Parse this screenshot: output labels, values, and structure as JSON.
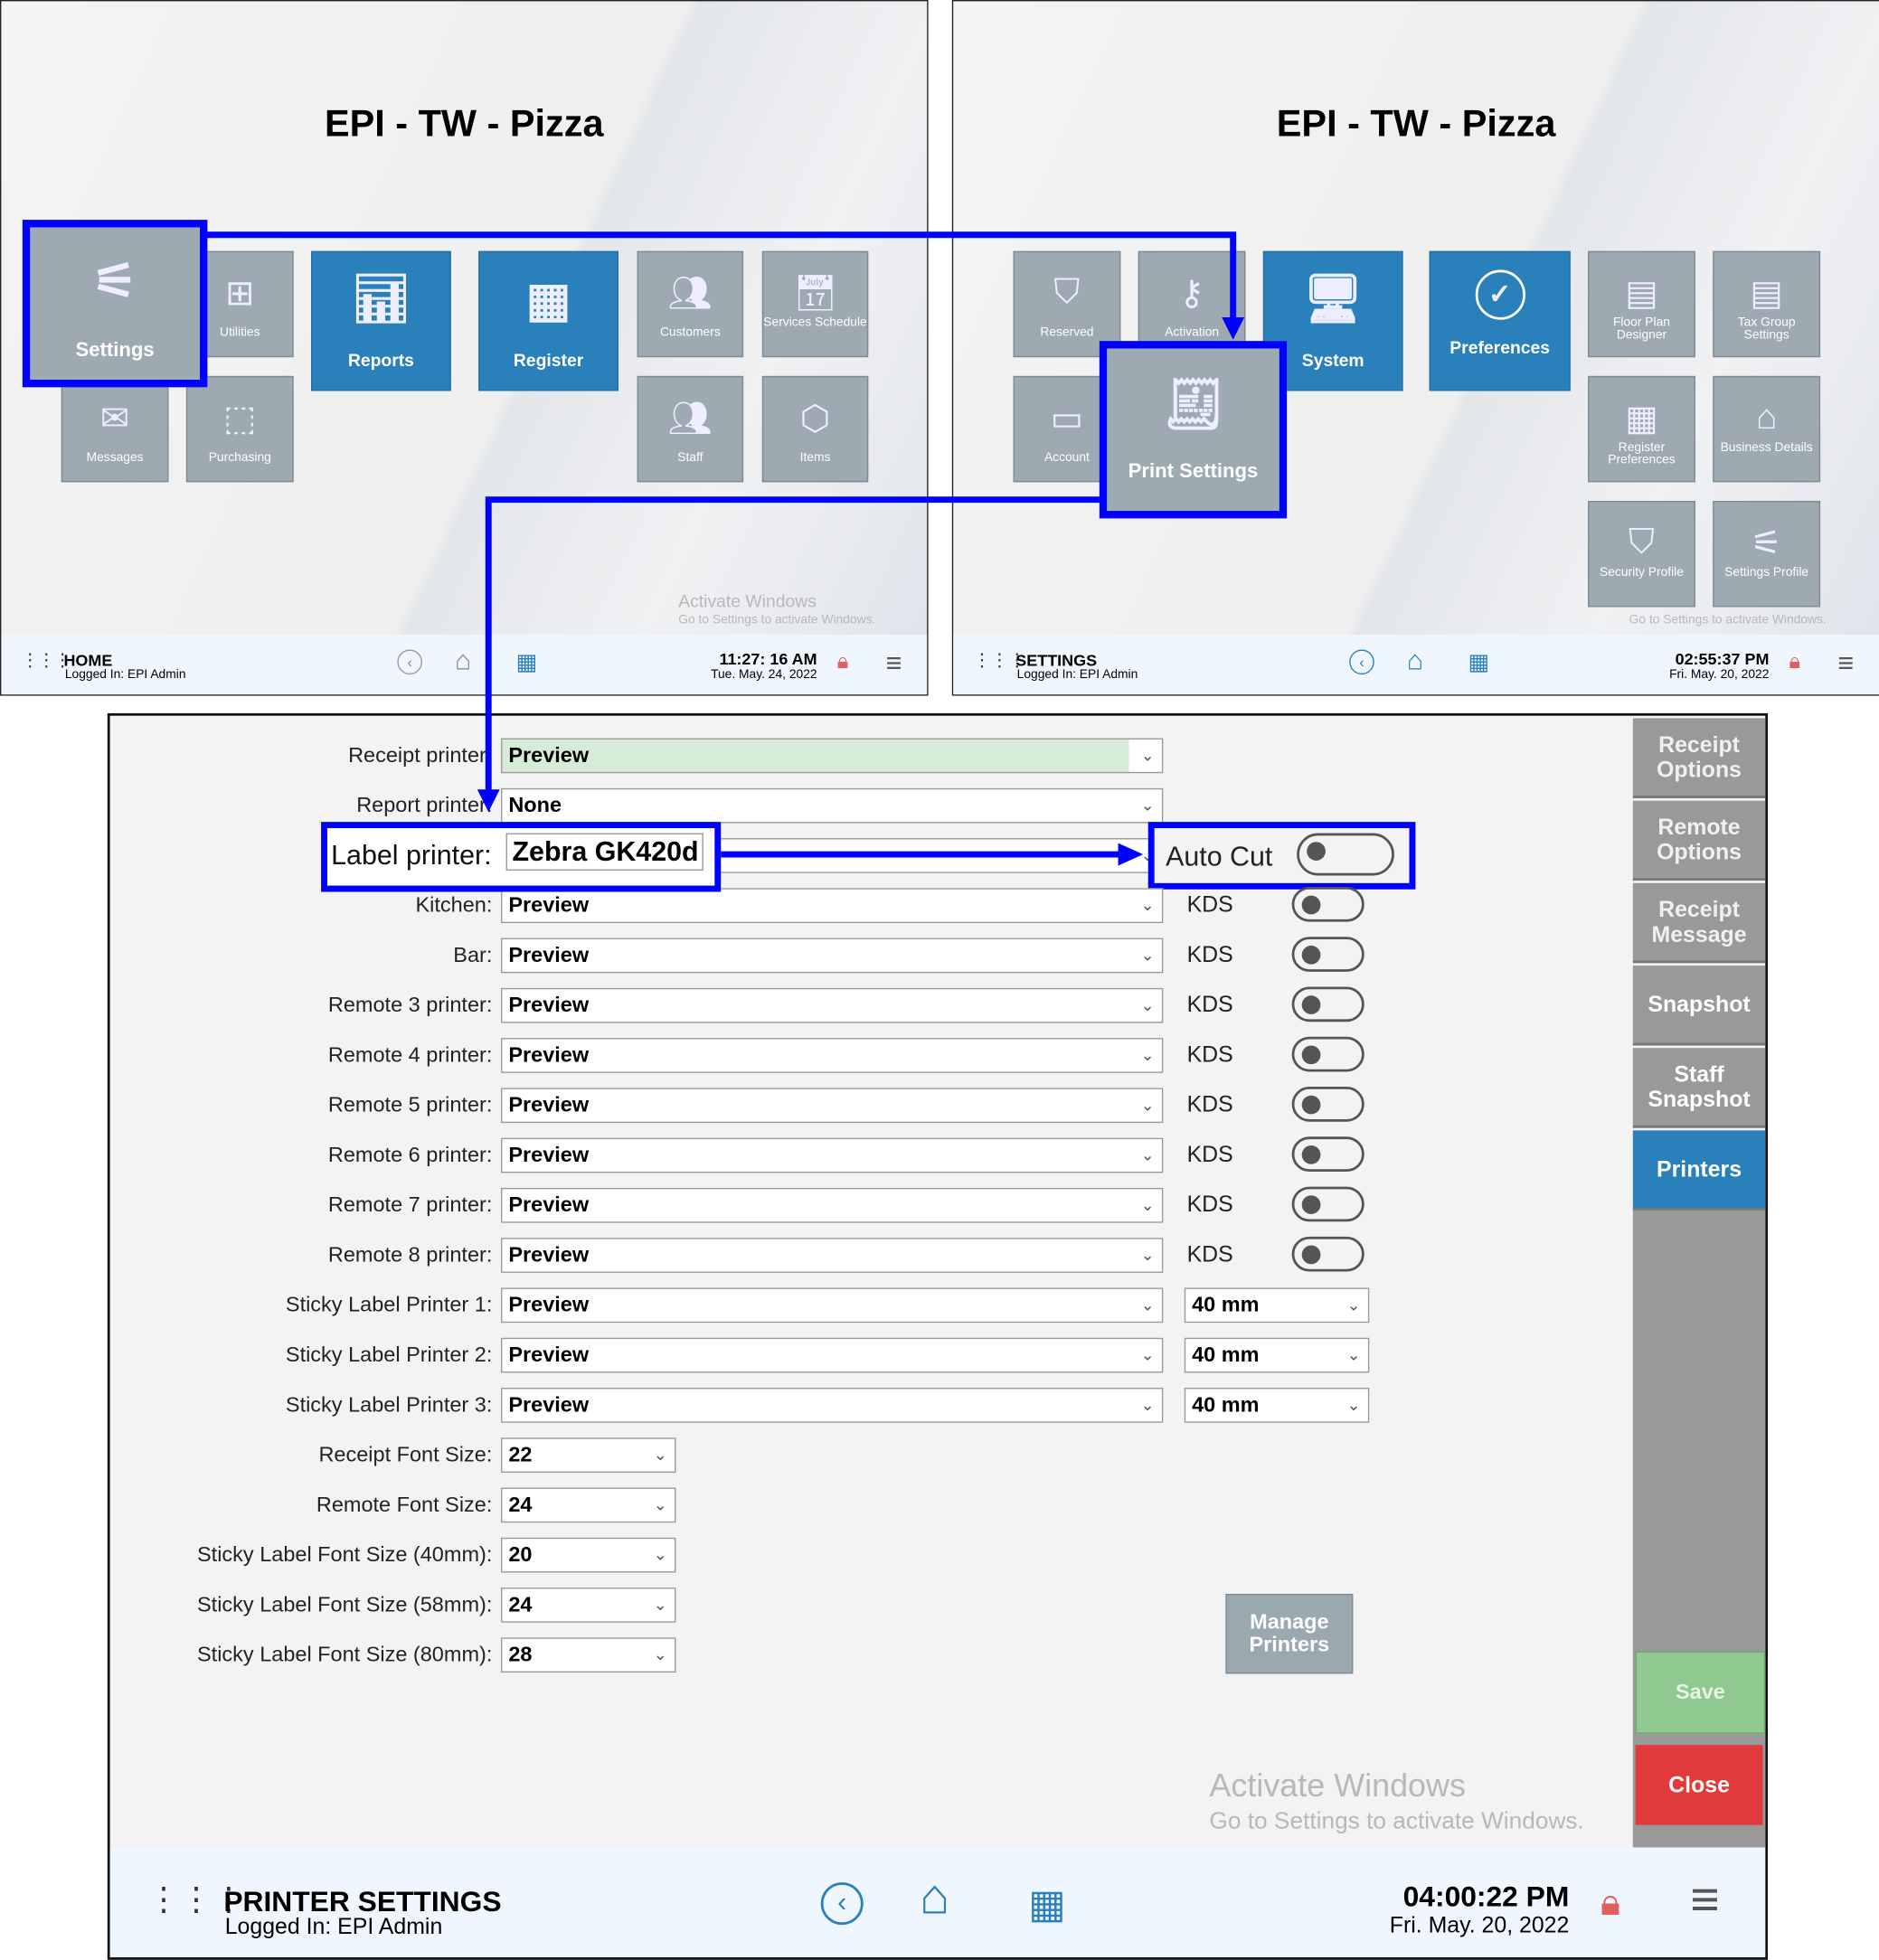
{
  "home": {
    "title": "EPI - TW - Pizza",
    "tiles": [
      {
        "label": "Settings",
        "icon": "sliders-icon",
        "style": "big"
      },
      {
        "label": "Utilities",
        "icon": "grid-plus-icon",
        "style": "gray"
      },
      {
        "label": "Reports",
        "icon": "report-chart-icon",
        "style": "blue"
      },
      {
        "label": "Register",
        "icon": "cash-register-icon",
        "style": "blue"
      },
      {
        "label": "Customers",
        "icon": "customers-icon",
        "style": "gray"
      },
      {
        "label": "Services Schedule",
        "icon": "calendar-clock-icon",
        "style": "gray"
      },
      {
        "label": "Messages",
        "icon": "envelope-icon",
        "style": "gray"
      },
      {
        "label": "Purchasing",
        "icon": "box-check-icon",
        "style": "gray"
      },
      {
        "label": "Staff",
        "icon": "staff-icon",
        "style": "gray"
      },
      {
        "label": "Items",
        "icon": "package-icon",
        "style": "gray"
      }
    ],
    "watermark_title": "Activate Windows",
    "watermark_sub": "Go to Settings to activate Windows.",
    "footer": {
      "screen": "HOME",
      "logged_in": "Logged In:  EPI Admin",
      "time": "11:27: 16 AM",
      "date": "Tue. May. 24, 2022"
    }
  },
  "settings": {
    "title": "EPI - TW - Pizza",
    "tiles": [
      {
        "label": "Reserved",
        "icon": "shield-check-icon",
        "style": "gray"
      },
      {
        "label": "Activation",
        "icon": "key-icon",
        "style": "gray"
      },
      {
        "label": "System",
        "icon": "monitor-icon",
        "style": "blue"
      },
      {
        "label": "Preferences",
        "icon": "check-circle-icon",
        "style": "blue"
      },
      {
        "label": "Floor Plan Designer",
        "icon": "floor-plan-icon",
        "style": "gray"
      },
      {
        "label": "Tax Group Settings",
        "icon": "tax-document-icon",
        "style": "gray"
      },
      {
        "label": "Account",
        "icon": "credit-card-icon",
        "style": "gray"
      },
      {
        "label": "Register Preferences",
        "icon": "register-check-icon",
        "style": "gray"
      },
      {
        "label": "Business Details",
        "icon": "storefront-icon",
        "style": "gray"
      },
      {
        "label": "Security Profile",
        "icon": "shield-user-icon",
        "style": "gray"
      },
      {
        "label": "Settings Profile",
        "icon": "sliders-user-icon",
        "style": "gray"
      },
      {
        "label": "Print Settings",
        "icon": "receipt-icon",
        "style": "big"
      }
    ],
    "watermark_sub": "Go to Settings to activate Windows.",
    "footer": {
      "screen": "SETTINGS",
      "logged_in": "Logged In:  EPI Admin",
      "time": "02:55:37 PM",
      "date": "Fri. May. 20, 2022"
    }
  },
  "printer_settings": {
    "rows": [
      {
        "label": "Receipt printer:",
        "value": "Preview",
        "highlight": "#d6ecd6"
      },
      {
        "label": "Report printer:",
        "value": "None"
      },
      {
        "label": "Label printer:",
        "value": "Zebra GK420d",
        "extra_label": "Auto Cut",
        "toggle": false
      },
      {
        "label": "Kitchen:",
        "value": "Preview",
        "extra_label": "KDS",
        "toggle": false
      },
      {
        "label": "Bar:",
        "value": "Preview",
        "extra_label": "KDS",
        "toggle": false
      },
      {
        "label": "Remote 3 printer:",
        "value": "Preview",
        "extra_label": "KDS",
        "toggle": false
      },
      {
        "label": "Remote 4 printer:",
        "value": "Preview",
        "extra_label": "KDS",
        "toggle": false
      },
      {
        "label": "Remote 5 printer:",
        "value": "Preview",
        "extra_label": "KDS",
        "toggle": false
      },
      {
        "label": "Remote 6 printer:",
        "value": "Preview",
        "extra_label": "KDS",
        "toggle": false
      },
      {
        "label": "Remote 7 printer:",
        "value": "Preview",
        "extra_label": "KDS",
        "toggle": false
      },
      {
        "label": "Remote 8 printer:",
        "value": "Preview",
        "extra_label": "KDS",
        "toggle": false
      },
      {
        "label": "Sticky Label Printer 1:",
        "value": "Preview",
        "size": "40 mm"
      },
      {
        "label": "Sticky Label Printer 2:",
        "value": "Preview",
        "size": "40 mm"
      },
      {
        "label": "Sticky Label Printer 3:",
        "value": "Preview",
        "size": "40 mm"
      },
      {
        "label": "Receipt Font Size:",
        "value": "22",
        "short": true
      },
      {
        "label": "Remote Font Size:",
        "value": "24",
        "short": true
      },
      {
        "label": "Sticky Label Font Size (40mm):",
        "value": "20",
        "short": true
      },
      {
        "label": "Sticky Label Font Size (58mm):",
        "value": "24",
        "short": true
      },
      {
        "label": "Sticky Label Font Size (80mm):",
        "value": "28",
        "short": true
      }
    ],
    "sidebar": [
      {
        "label": "Receipt Options",
        "active": false
      },
      {
        "label": "Remote Options",
        "active": false
      },
      {
        "label": "Receipt Message",
        "active": false
      },
      {
        "label": "Snapshot",
        "active": false
      },
      {
        "label": "Staff Snapshot",
        "active": false
      },
      {
        "label": "Printers",
        "active": true
      }
    ],
    "manage_printers": "Manage Printers",
    "save": "Save",
    "close": "Close",
    "watermark_title": "Activate Windows",
    "watermark_sub": "Go to Settings to activate Windows.",
    "footer": {
      "screen": "PRINTER SETTINGS",
      "logged_in": "Logged In:  EPI Admin",
      "time": "04:00:22 PM",
      "date": "Fri. May. 20, 2022"
    }
  },
  "colors": {
    "highlight": "#0000ff",
    "tile_blue": "#2a80bb",
    "tile_gray": "#9eaab2",
    "save": "#8fc98f",
    "close": "#e03a3a",
    "active_tab": "#2a80bb"
  }
}
